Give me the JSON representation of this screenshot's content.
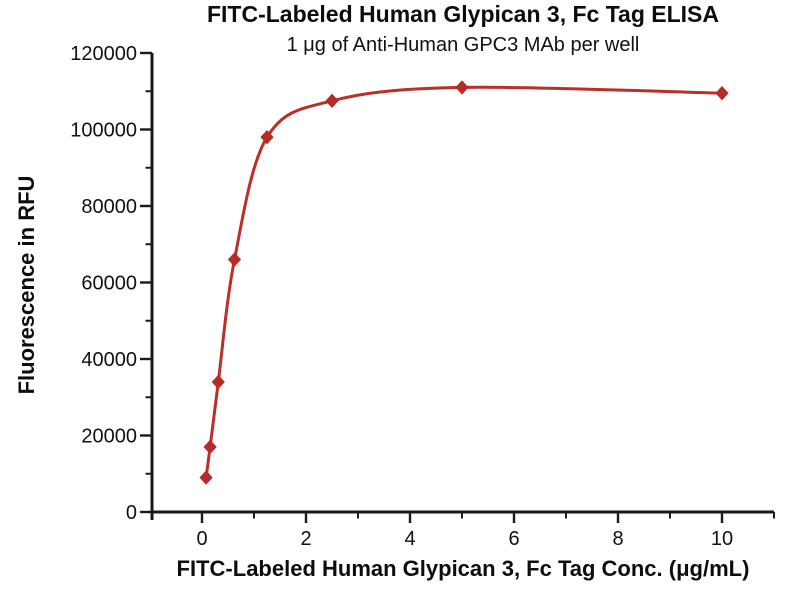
{
  "chart_data": {
    "type": "line",
    "title": "FITC-Labeled Human Glypican 3, Fc Tag ELISA",
    "subtitle": "1 μg of Anti-Human GPC3 MAb per well",
    "xlabel": "FITC-Labeled Human Glypican 3, Fc Tag Conc. (μg/mL)",
    "ylabel": "Fluorescence in RFU",
    "x": [
      0.078,
      0.156,
      0.313,
      0.625,
      1.25,
      2.5,
      5,
      10
    ],
    "y": [
      9000,
      17000,
      34000,
      66000,
      98000,
      107500,
      111000,
      109500
    ],
    "xlim": [
      -1,
      11
    ],
    "ylim": [
      0,
      120000
    ],
    "x_major_ticks": [
      0,
      2,
      4,
      6,
      8,
      10
    ],
    "x_minor_step": 1,
    "y_major_ticks": [
      0,
      20000,
      40000,
      60000,
      80000,
      100000,
      120000
    ],
    "y_minor_step": 10000,
    "grid": false,
    "legend": "none",
    "marker": "diamond",
    "curve_style": "smooth-4pl-fit",
    "line_color": "#BB2F2B",
    "marker_color": "#B52B28",
    "axis_color": "#1A1A1A",
    "text_color": "#111111",
    "background": "#FFFFFF"
  }
}
